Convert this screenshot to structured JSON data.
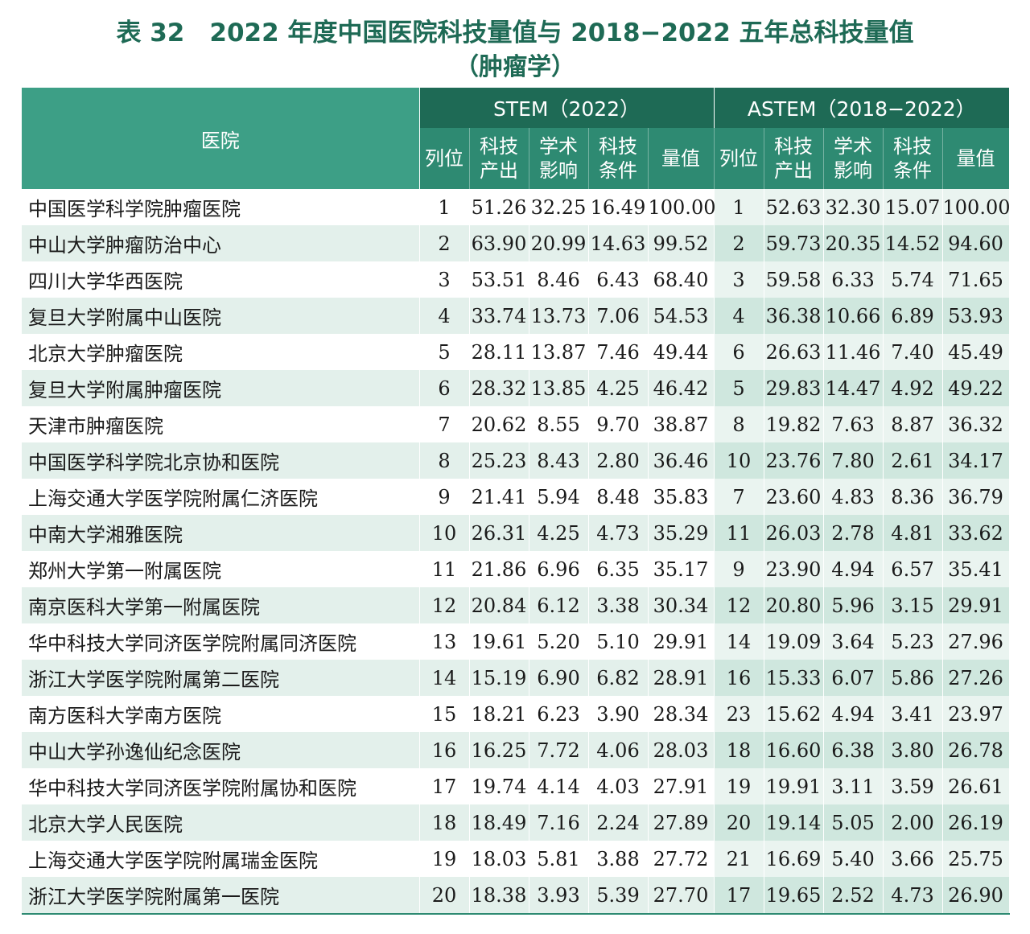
{
  "title": {
    "line1": "表 32　2022 年度中国医院科技量值与 2018−2022 五年总科技量值",
    "line2": "（肿瘤学）"
  },
  "headers": {
    "hospital": "医院",
    "stem": "STEM（2022）",
    "astem": "ASTEM（2018−2022）",
    "rank": "列位",
    "output": [
      "科技",
      "产出"
    ],
    "influence": [
      "学术",
      "影响"
    ],
    "condition": [
      "科技",
      "条件"
    ],
    "value": "量值"
  },
  "rows": [
    {
      "name": "中国医学科学院肿瘤医院",
      "s": [
        "1",
        "51.26",
        "32.25",
        "16.49",
        "100.00"
      ],
      "a": [
        "1",
        "52.63",
        "32.30",
        "15.07",
        "100.00"
      ]
    },
    {
      "name": "中山大学肿瘤防治中心",
      "s": [
        "2",
        "63.90",
        "20.99",
        "14.63",
        "99.52"
      ],
      "a": [
        "2",
        "59.73",
        "20.35",
        "14.52",
        "94.60"
      ]
    },
    {
      "name": "四川大学华西医院",
      "s": [
        "3",
        "53.51",
        "8.46",
        "6.43",
        "68.40"
      ],
      "a": [
        "3",
        "59.58",
        "6.33",
        "5.74",
        "71.65"
      ]
    },
    {
      "name": "复旦大学附属中山医院",
      "s": [
        "4",
        "33.74",
        "13.73",
        "7.06",
        "54.53"
      ],
      "a": [
        "4",
        "36.38",
        "10.66",
        "6.89",
        "53.93"
      ]
    },
    {
      "name": "北京大学肿瘤医院",
      "s": [
        "5",
        "28.11",
        "13.87",
        "7.46",
        "49.44"
      ],
      "a": [
        "6",
        "26.63",
        "11.46",
        "7.40",
        "45.49"
      ]
    },
    {
      "name": "复旦大学附属肿瘤医院",
      "s": [
        "6",
        "28.32",
        "13.85",
        "4.25",
        "46.42"
      ],
      "a": [
        "5",
        "29.83",
        "14.47",
        "4.92",
        "49.22"
      ]
    },
    {
      "name": "天津市肿瘤医院",
      "s": [
        "7",
        "20.62",
        "8.55",
        "9.70",
        "38.87"
      ],
      "a": [
        "8",
        "19.82",
        "7.63",
        "8.87",
        "36.32"
      ]
    },
    {
      "name": "中国医学科学院北京协和医院",
      "s": [
        "8",
        "25.23",
        "8.43",
        "2.80",
        "36.46"
      ],
      "a": [
        "10",
        "23.76",
        "7.80",
        "2.61",
        "34.17"
      ]
    },
    {
      "name": "上海交通大学医学院附属仁济医院",
      "s": [
        "9",
        "21.41",
        "5.94",
        "8.48",
        "35.83"
      ],
      "a": [
        "7",
        "23.60",
        "4.83",
        "8.36",
        "36.79"
      ]
    },
    {
      "name": "中南大学湘雅医院",
      "s": [
        "10",
        "26.31",
        "4.25",
        "4.73",
        "35.29"
      ],
      "a": [
        "11",
        "26.03",
        "2.78",
        "4.81",
        "33.62"
      ]
    },
    {
      "name": "郑州大学第一附属医院",
      "s": [
        "11",
        "21.86",
        "6.96",
        "6.35",
        "35.17"
      ],
      "a": [
        "9",
        "23.90",
        "4.94",
        "6.57",
        "35.41"
      ]
    },
    {
      "name": "南京医科大学第一附属医院",
      "s": [
        "12",
        "20.84",
        "6.12",
        "3.38",
        "30.34"
      ],
      "a": [
        "12",
        "20.80",
        "5.96",
        "3.15",
        "29.91"
      ]
    },
    {
      "name": "华中科技大学同济医学院附属同济医院",
      "s": [
        "13",
        "19.61",
        "5.20",
        "5.10",
        "29.91"
      ],
      "a": [
        "14",
        "19.09",
        "3.64",
        "5.23",
        "27.96"
      ]
    },
    {
      "name": "浙江大学医学院附属第二医院",
      "s": [
        "14",
        "15.19",
        "6.90",
        "6.82",
        "28.91"
      ],
      "a": [
        "16",
        "15.33",
        "6.07",
        "5.86",
        "27.26"
      ]
    },
    {
      "name": "南方医科大学南方医院",
      "s": [
        "15",
        "18.21",
        "6.23",
        "3.90",
        "28.34"
      ],
      "a": [
        "23",
        "15.62",
        "4.94",
        "3.41",
        "23.97"
      ]
    },
    {
      "name": "中山大学孙逸仙纪念医院",
      "s": [
        "16",
        "16.25",
        "7.72",
        "4.06",
        "28.03"
      ],
      "a": [
        "18",
        "16.60",
        "6.38",
        "3.80",
        "26.78"
      ]
    },
    {
      "name": "华中科技大学同济医学院附属协和医院",
      "s": [
        "17",
        "19.74",
        "4.14",
        "4.03",
        "27.91"
      ],
      "a": [
        "19",
        "19.91",
        "3.11",
        "3.59",
        "26.61"
      ]
    },
    {
      "name": "北京大学人民医院",
      "s": [
        "18",
        "18.49",
        "7.16",
        "2.24",
        "27.89"
      ],
      "a": [
        "20",
        "19.14",
        "5.05",
        "2.00",
        "26.19"
      ]
    },
    {
      "name": "上海交通大学医学院附属瑞金医院",
      "s": [
        "19",
        "18.03",
        "5.81",
        "3.88",
        "27.72"
      ],
      "a": [
        "21",
        "16.69",
        "5.40",
        "3.66",
        "25.75"
      ]
    },
    {
      "name": "浙江大学医学院附属第一医院",
      "s": [
        "20",
        "18.38",
        "3.93",
        "5.39",
        "27.70"
      ],
      "a": [
        "17",
        "19.65",
        "2.52",
        "4.73",
        "26.90"
      ]
    }
  ]
}
